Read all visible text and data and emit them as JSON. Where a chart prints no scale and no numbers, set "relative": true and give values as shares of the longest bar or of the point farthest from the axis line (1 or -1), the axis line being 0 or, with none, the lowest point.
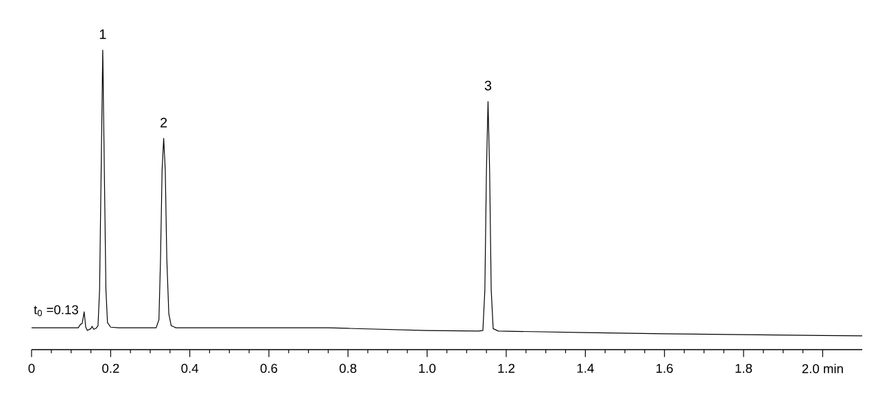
{
  "chart_data": {
    "type": "line",
    "relative": true,
    "color": "#000000",
    "x": [
      0,
      0.118,
      0.124,
      0.128,
      0.133,
      0.137,
      0.141,
      0.15,
      0.153,
      0.157,
      0.163,
      0.168,
      0.172,
      0.176,
      0.18,
      0.184,
      0.188,
      0.192,
      0.2,
      0.22,
      0.315,
      0.322,
      0.326,
      0.33,
      0.334,
      0.338,
      0.342,
      0.347,
      0.353,
      0.365,
      0.6,
      0.75,
      0.8,
      1.0,
      1.13,
      1.141,
      1.146,
      1.15,
      1.154,
      1.158,
      1.162,
      1.167,
      1.18,
      1.4,
      1.6,
      1.8,
      2.0,
      2.1
    ],
    "values": [
      0.073,
      0.073,
      0.085,
      0.087,
      0.126,
      0.075,
      0.064,
      0.07,
      0.078,
      0.068,
      0.071,
      0.08,
      0.2,
      0.6,
      1.0,
      0.6,
      0.2,
      0.09,
      0.075,
      0.073,
      0.073,
      0.1,
      0.3,
      0.6,
      0.705,
      0.6,
      0.3,
      0.12,
      0.08,
      0.073,
      0.073,
      0.073,
      0.071,
      0.064,
      0.062,
      0.064,
      0.2,
      0.6,
      0.828,
      0.6,
      0.2,
      0.07,
      0.062,
      0.057,
      0.053,
      0.05,
      0.047,
      0.046
    ],
    "xlim": [
      0,
      2.1
    ],
    "xticks": [
      0,
      {
        "value": 0.05,
        "label": null
      },
      {
        "value": 0.1,
        "label": null
      },
      {
        "value": 0.15,
        "label": null
      },
      0.2,
      {
        "value": 0.25,
        "label": null
      },
      {
        "value": 0.3,
        "label": null
      },
      {
        "value": 0.35,
        "label": null
      },
      0.4,
      {
        "value": 0.45,
        "label": null
      },
      {
        "value": 0.5,
        "label": null
      },
      {
        "value": 0.55,
        "label": null
      },
      0.6,
      {
        "value": 0.65,
        "label": null
      },
      {
        "value": 0.7,
        "label": null
      },
      {
        "value": 0.75,
        "label": null
      },
      0.8,
      {
        "value": 0.85,
        "label": null
      },
      {
        "value": 0.9,
        "label": null
      },
      {
        "value": 0.95,
        "label": null
      },
      {
        "value": 1.0,
        "label": "1.0"
      },
      {
        "value": 1.05,
        "label": null
      },
      {
        "value": 1.1,
        "label": null
      },
      {
        "value": 1.15,
        "label": null
      },
      1.2,
      {
        "value": 1.25,
        "label": null
      },
      {
        "value": 1.3,
        "label": null
      },
      {
        "value": 1.35,
        "label": null
      },
      1.4,
      {
        "value": 1.45,
        "label": null
      },
      {
        "value": 1.5,
        "label": null
      },
      {
        "value": 1.55,
        "label": null
      },
      1.6,
      {
        "value": 1.65,
        "label": null
      },
      {
        "value": 1.7,
        "label": null
      },
      {
        "value": 1.75,
        "label": null
      },
      1.8,
      {
        "value": 1.85,
        "label": null
      },
      {
        "value": 1.9,
        "label": null
      },
      {
        "value": 1.95,
        "label": null
      },
      {
        "value": 2.0,
        "label": "2.0 min"
      }
    ],
    "annotations": [
      {
        "text": "1",
        "x": 0.18,
        "y": 1.0
      },
      {
        "text": "2",
        "x": 0.334,
        "y": 0.705
      },
      {
        "text": "3",
        "x": 1.154,
        "y": 0.828
      },
      "t$_{0}$ =0.13"
    ]
  }
}
